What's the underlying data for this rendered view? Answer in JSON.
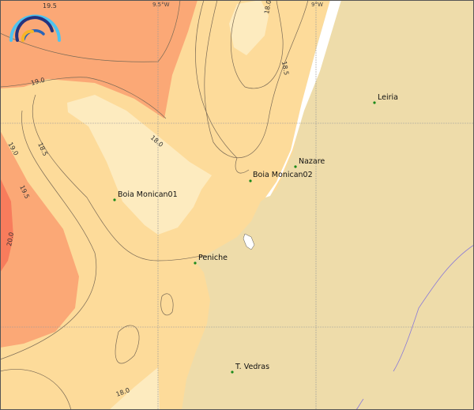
{
  "map": {
    "colors": {
      "land": "#eedcaa",
      "sea_base": "#fddb9a",
      "sea_cool": "#fdebbf",
      "sea_warm": "#fba876",
      "sea_hot": "#f87c5c",
      "station_marker": "#1a8a1a",
      "river": "#8a7ad8"
    },
    "grid_labels": {
      "lon1": "9.5°W",
      "lon2": "9°W"
    },
    "contour_labels": [
      "19.5",
      "19.0",
      "18.0",
      "18.5",
      "19.0",
      "18.5",
      "18.0",
      "19.5",
      "20.0",
      "18.0"
    ],
    "stations": [
      {
        "name": "Leiria"
      },
      {
        "name": "Nazare"
      },
      {
        "name": "Boia Monican02"
      },
      {
        "name": "Boia Monican01"
      },
      {
        "name": "Peniche"
      },
      {
        "name": "T. Vedras"
      }
    ],
    "logo_icon": "wave-arcs-logo"
  }
}
